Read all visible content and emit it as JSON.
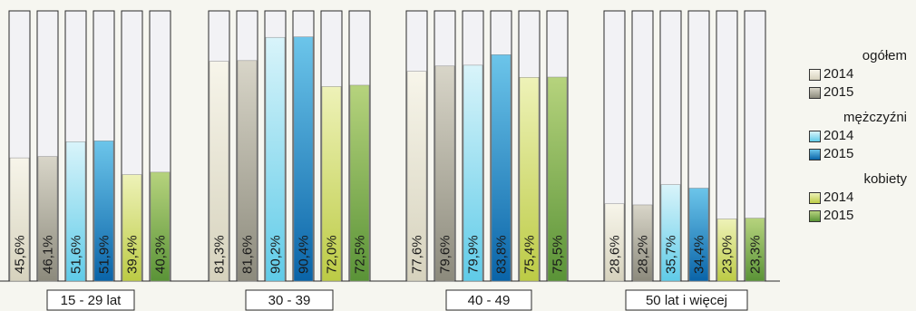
{
  "chart_data": {
    "type": "bar",
    "categories": [
      "15 - 29 lat",
      "30 - 39",
      "40 - 49",
      "50 lat i więcej"
    ],
    "ylim": [
      0,
      100
    ],
    "series": [
      {
        "group": "ogółem",
        "name": "2014",
        "color_top": "#f7f5ea",
        "color_bottom": "#d6d2bd",
        "values": [
          45.6,
          81.3,
          77.6,
          28.6
        ],
        "labels": [
          "45,6%",
          "81,3%",
          "77,6%",
          "28,6%"
        ]
      },
      {
        "group": "ogółem",
        "name": "2015",
        "color_top": "#d8d5c8",
        "color_bottom": "#8c8a7c",
        "values": [
          46.1,
          81.6,
          79.6,
          28.2
        ],
        "labels": [
          "46,1%",
          "81,6%",
          "79,6%",
          "28,2%"
        ]
      },
      {
        "group": "mężczyźni",
        "name": "2014",
        "color_top": "#d9f4fa",
        "color_bottom": "#5fcbe8",
        "values": [
          51.6,
          90.2,
          79.9,
          35.7
        ],
        "labels": [
          "51,6%",
          "90,2%",
          "79,9%",
          "35,7%"
        ]
      },
      {
        "group": "mężczyźni",
        "name": "2015",
        "color_top": "#6cc5ea",
        "color_bottom": "#0a64a8",
        "values": [
          51.9,
          90.4,
          83.8,
          34.4
        ],
        "labels": [
          "51,9%",
          "90,4%",
          "83,8%",
          "34,4%"
        ]
      },
      {
        "group": "kobiety",
        "name": "2014",
        "color_top": "#eef2b8",
        "color_bottom": "#bccb45",
        "values": [
          39.4,
          72.0,
          75.4,
          23.0
        ],
        "labels": [
          "39,4%",
          "72,0%",
          "75,4%",
          "23,0%"
        ]
      },
      {
        "group": "kobiety",
        "name": "2015",
        "color_top": "#b6d37d",
        "color_bottom": "#5a9337",
        "values": [
          40.3,
          72.5,
          75.5,
          23.3
        ],
        "labels": [
          "40,3%",
          "72,5%",
          "75,5%",
          "23,3%"
        ]
      }
    ],
    "legend": {
      "placement": "right",
      "groups": [
        {
          "title": "ogółem",
          "items": [
            "2014",
            "2015"
          ]
        },
        {
          "title": "mężczyźni",
          "items": [
            "2014",
            "2015"
          ]
        },
        {
          "title": "kobiety",
          "items": [
            "2014",
            "2015"
          ]
        }
      ]
    },
    "background_bar_color": "#f2f2f5",
    "axis_color": "#2a2a2a"
  }
}
